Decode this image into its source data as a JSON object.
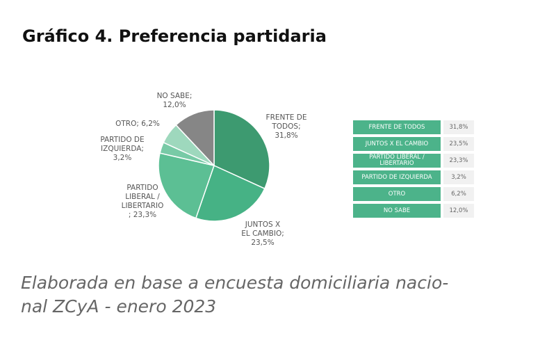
{
  "title": "Gráfico 4. Preferencia partidaria",
  "note": {
    "line1": "Elaborada en base a encuesta domiciliaria nacio-",
    "line2": "nal ZCyA - enero 2023"
  },
  "chart_data": {
    "type": "pie",
    "title": "Gráfico 4. Preferencia partidaria",
    "slices": [
      {
        "category": "FRENTE DE TODOS",
        "value": 31.8,
        "color": "#3d9a70",
        "label_lines": [
          "FRENTE DE",
          "TODOS;",
          "31,8%"
        ]
      },
      {
        "category": "JUNTOS X EL CAMBIO",
        "value": 23.5,
        "color": "#46b285",
        "label_lines": [
          "JUNTOS X",
          "EL CAMBIO;",
          "23,5%"
        ]
      },
      {
        "category": "PARTIDO LIBERAL / LIBERTARIO",
        "value": 23.3,
        "color": "#5cbf94",
        "label_lines": [
          "PARTIDO",
          "LIBERAL /",
          "LIBERTARIO",
          "; 23,3%"
        ]
      },
      {
        "category": "PARTIDO DE IZQUIERDA",
        "value": 3.2,
        "color": "#78caa6",
        "label_lines": [
          "PARTIDO DE",
          "IZQUIERDA;",
          "3,2%"
        ]
      },
      {
        "category": "OTRO",
        "value": 6.2,
        "color": "#9ed8bd",
        "label_lines": [
          "OTRO; 6,2%"
        ]
      },
      {
        "category": "NO SABE",
        "value": 12.0,
        "color": "#868686",
        "label_lines": [
          "NO SABE;",
          "12,0%"
        ]
      }
    ],
    "table": [
      {
        "name_lines": [
          "FRENTE DE TODOS"
        ],
        "value": "31,8%"
      },
      {
        "name_lines": [
          "JUNTOS X EL CAMBIO"
        ],
        "value": "23,5%"
      },
      {
        "name_lines": [
          "PARTIDO LIBERAL /",
          "LIBERTARIO"
        ],
        "value": "23,3%"
      },
      {
        "name_lines": [
          "PARTIDO DE IZQUIERDA"
        ],
        "value": "3,2%"
      },
      {
        "name_lines": [
          "OTRO"
        ],
        "value": "6,2%"
      },
      {
        "name_lines": [
          "NO SABE"
        ],
        "value": "12,0%"
      }
    ]
  }
}
